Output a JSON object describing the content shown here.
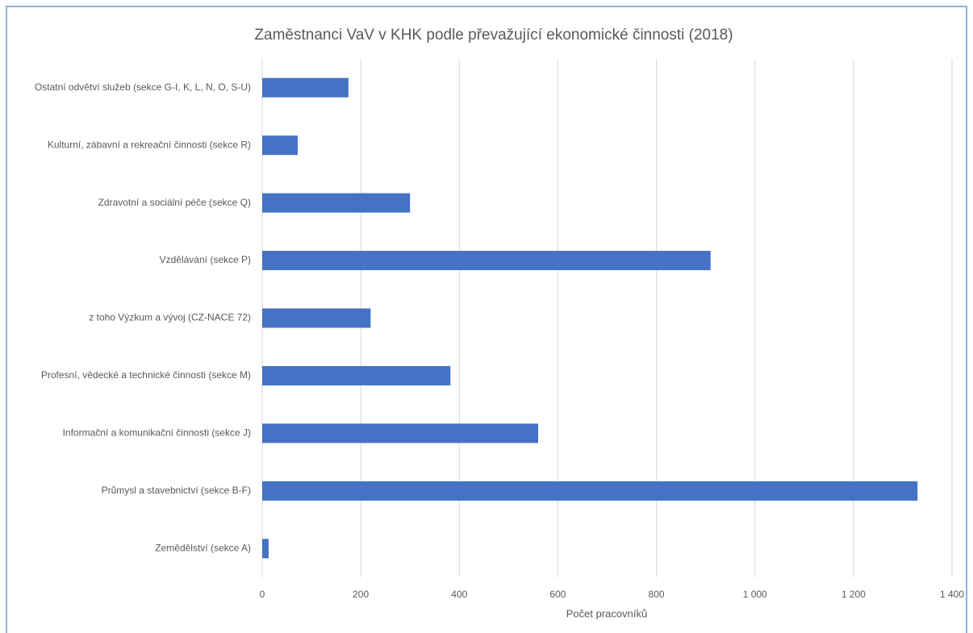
{
  "chart_data": {
    "type": "bar",
    "orientation": "horizontal",
    "title": "Zaměstnanci VaV v KHK podle převažující ekonomické činnosti (2018)",
    "xlabel": "Počet pracovníků",
    "categories": [
      "Ostatní odvětví služeb (sekce G-I, K, L, N, O, S-U)",
      "Kulturní, zábavní a rekreační činnosti (sekce R)",
      "Zdravotní a sociální péče (sekce Q)",
      "Vzdělávání (sekce P)",
      "z toho Výzkum a vývoj (CZ-NACE 72)",
      "Profesní, vědecké a technické činnosti (sekce M)",
      "Informační a komunikační činnosti (sekce J)",
      "Průmysl a stavebnictví (sekce B-F)",
      "Zemědělství (sekce A)"
    ],
    "values": [
      175,
      72,
      300,
      910,
      220,
      382,
      560,
      1330,
      13
    ],
    "color": "#4472c4",
    "xlim": [
      0,
      1400
    ],
    "xticks": [
      0,
      200,
      400,
      600,
      800,
      {
        "value": 1000,
        "label": "1 000"
      },
      {
        "value": 1200,
        "label": "1 200"
      },
      {
        "value": 1400,
        "label": "1 400"
      }
    ],
    "grid": true
  }
}
